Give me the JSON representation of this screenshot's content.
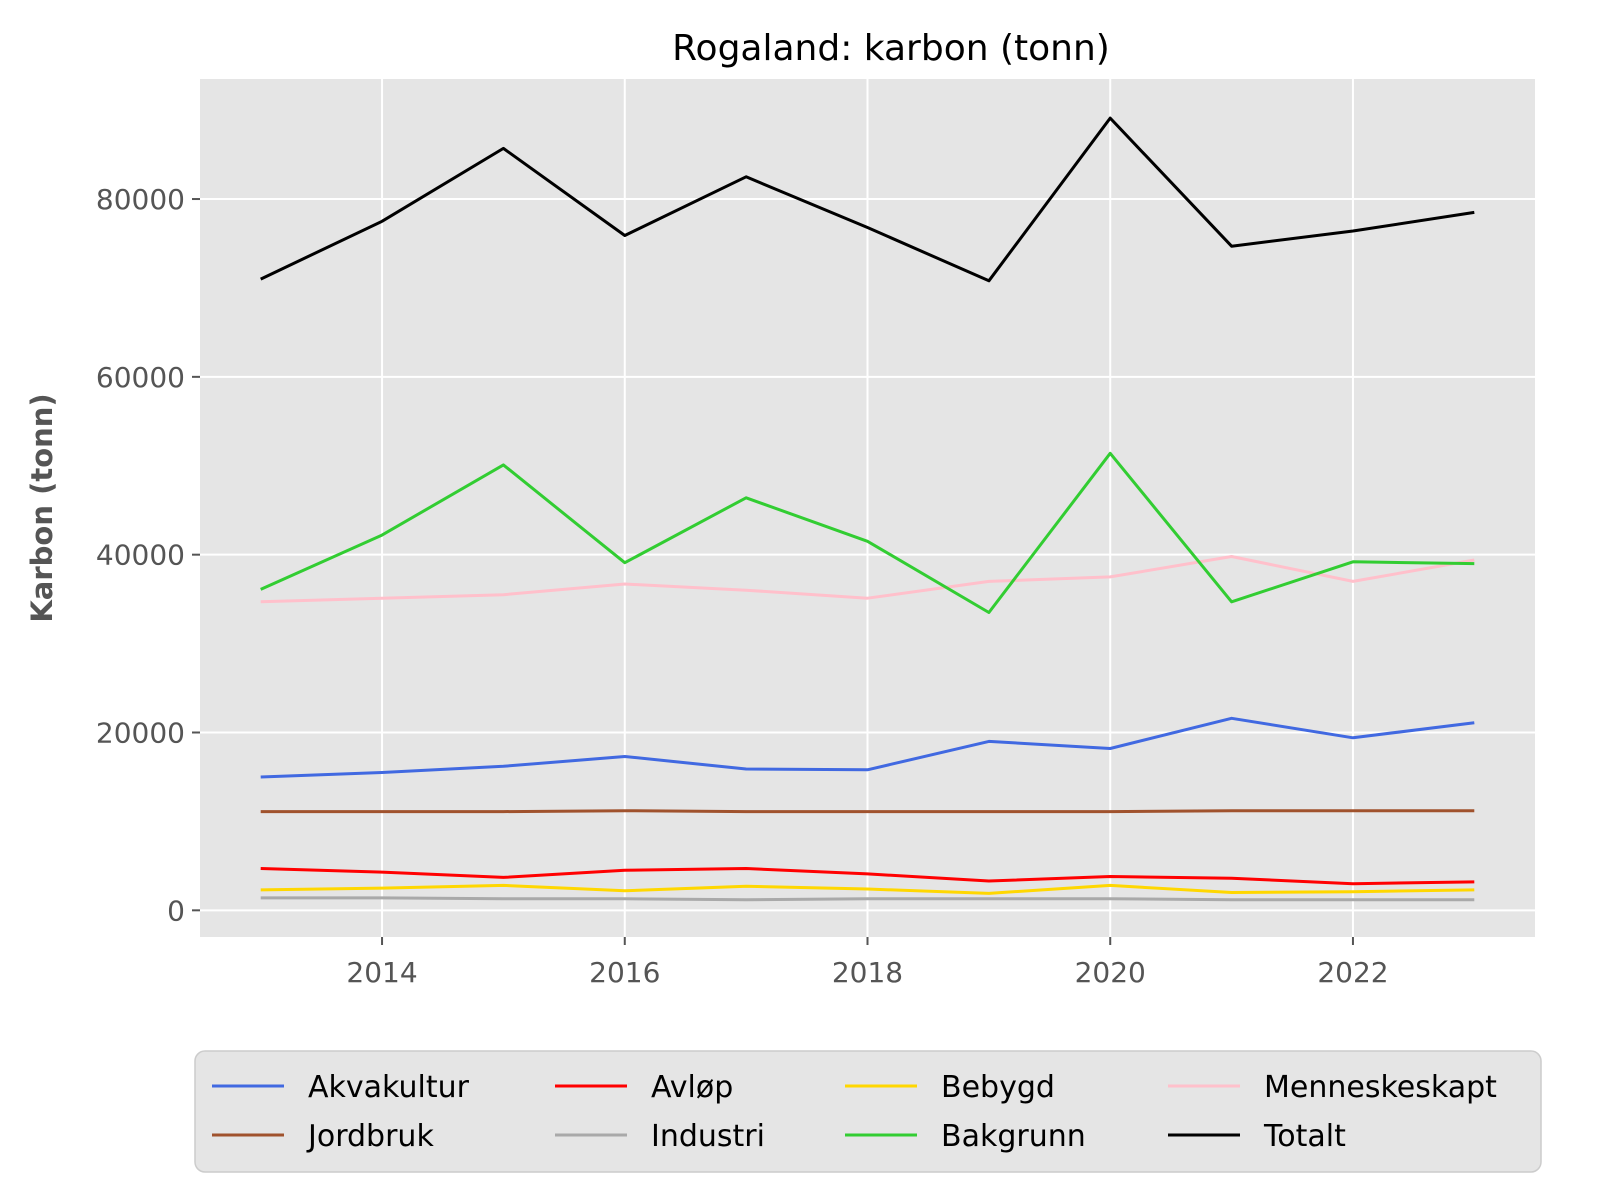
{
  "chart_data": {
    "type": "line",
    "title": "Rogaland: karbon (tonn)",
    "xlabel": "",
    "ylabel": "Karbon (tonn)",
    "x": [
      2013,
      2014,
      2015,
      2016,
      2017,
      2018,
      2019,
      2020,
      2021,
      2022,
      2023
    ],
    "xlim": [
      2012.5,
      2023.5
    ],
    "ylim": [
      -3000,
      93500
    ],
    "xticks": [
      2014,
      2016,
      2018,
      2020,
      2022
    ],
    "yticks": [
      0,
      20000,
      40000,
      60000,
      80000
    ],
    "grid": true,
    "legend_position": "bottom-center",
    "series": [
      {
        "name": "Akvakultur",
        "color": "#4169e1",
        "values": [
          15000,
          15500,
          16200,
          17300,
          15900,
          15800,
          19000,
          18200,
          21600,
          19400,
          21100
        ]
      },
      {
        "name": "Avløp",
        "color": "#ff0000",
        "values": [
          4700,
          4300,
          3700,
          4500,
          4700,
          4100,
          3300,
          3800,
          3600,
          3000,
          3200
        ]
      },
      {
        "name": "Bebygd",
        "color": "#ffd700",
        "values": [
          2300,
          2500,
          2800,
          2200,
          2700,
          2400,
          1900,
          2800,
          2000,
          2100,
          2300
        ]
      },
      {
        "name": "Menneskeskapt",
        "color": "#ffc0cb",
        "values": [
          34700,
          35100,
          35500,
          36700,
          36000,
          35100,
          37000,
          37500,
          39800,
          37000,
          39400
        ]
      },
      {
        "name": "Jordbruk",
        "color": "#a0522d",
        "values": [
          11100,
          11100,
          11100,
          11200,
          11100,
          11100,
          11100,
          11100,
          11200,
          11200,
          11200
        ]
      },
      {
        "name": "Industri",
        "color": "#a9a9a9",
        "values": [
          1400,
          1400,
          1300,
          1300,
          1200,
          1300,
          1300,
          1300,
          1200,
          1200,
          1200
        ]
      },
      {
        "name": "Bakgrunn",
        "color": "#32cd32",
        "values": [
          36100,
          42200,
          50100,
          39100,
          46400,
          41500,
          33500,
          51400,
          34700,
          39200,
          39000
        ]
      },
      {
        "name": "Totalt",
        "color": "#000000",
        "values": [
          71000,
          77500,
          85700,
          75900,
          82500,
          76800,
          70800,
          89100,
          74700,
          76400,
          78500
        ]
      }
    ],
    "legend_order": [
      "Akvakultur",
      "Avløp",
      "Bebygd",
      "Menneskeskapt",
      "Jordbruk",
      "Industri",
      "Bakgrunn",
      "Totalt"
    ]
  },
  "style": {
    "plot_background": "#e5e5e5",
    "grid_color": "#ffffff",
    "legend_background": "#e5e5e5",
    "legend_border": "#cccccc"
  }
}
